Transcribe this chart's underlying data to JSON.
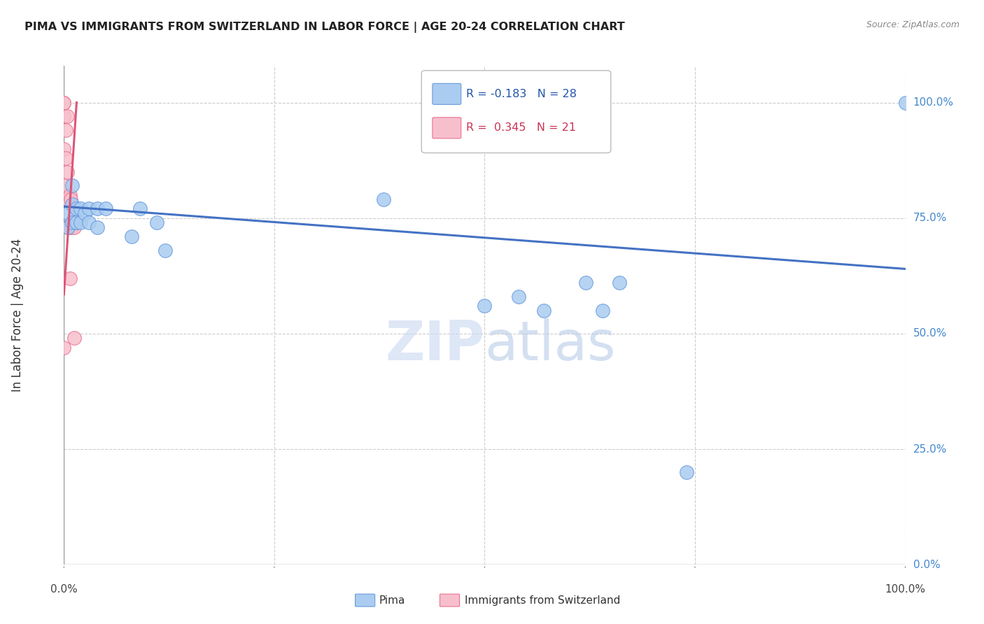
{
  "title": "PIMA VS IMMIGRANTS FROM SWITZERLAND IN LABOR FORCE | AGE 20-24 CORRELATION CHART",
  "source": "Source: ZipAtlas.com",
  "ylabel": "In Labor Force | Age 20-24",
  "xlim": [
    0.0,
    1.0
  ],
  "ylim": [
    0.0,
    1.08
  ],
  "background_color": "#ffffff",
  "pima_color": "#aaccf0",
  "swiss_color": "#f7bfcc",
  "pima_edge_color": "#6699dd",
  "swiss_edge_color": "#e87090",
  "pima_line_color": "#4472c4",
  "swiss_line_color": "#dd5577",
  "legend_pima_R": "-0.183",
  "legend_pima_N": "28",
  "legend_swiss_R": "0.345",
  "legend_swiss_N": "21",
  "right_ytick_labels": [
    "100.0%",
    "75.0%",
    "50.0%",
    "25.0%",
    "0.0%"
  ],
  "right_ytick_values": [
    1.0,
    0.75,
    0.5,
    0.25,
    0.0
  ],
  "pima_scatter_x": [
    0.005,
    0.005,
    0.01,
    0.01,
    0.01,
    0.015,
    0.015,
    0.02,
    0.02,
    0.025,
    0.03,
    0.03,
    0.04,
    0.04,
    0.05,
    0.08,
    0.09,
    0.11,
    0.12,
    0.38,
    0.5,
    0.54,
    0.57,
    0.62,
    0.64,
    0.66,
    0.74,
    1.0
  ],
  "pima_scatter_y": [
    0.76,
    0.73,
    0.82,
    0.78,
    0.74,
    0.77,
    0.74,
    0.77,
    0.74,
    0.76,
    0.77,
    0.74,
    0.77,
    0.73,
    0.77,
    0.71,
    0.77,
    0.74,
    0.68,
    0.79,
    0.56,
    0.58,
    0.55,
    0.61,
    0.55,
    0.61,
    0.2,
    1.0
  ],
  "swiss_scatter_x": [
    0.0,
    0.0,
    0.0,
    0.0,
    0.0,
    0.0,
    0.002,
    0.002,
    0.004,
    0.004,
    0.004,
    0.005,
    0.005,
    0.007,
    0.007,
    0.008,
    0.009,
    0.009,
    0.012,
    0.012,
    0.015
  ],
  "swiss_scatter_y": [
    1.0,
    1.0,
    0.97,
    0.9,
    0.82,
    0.47,
    0.94,
    0.88,
    0.97,
    0.85,
    0.79,
    0.79,
    0.73,
    0.8,
    0.62,
    0.79,
    0.74,
    0.73,
    0.73,
    0.49,
    0.74
  ],
  "pima_trend_x": [
    0.0,
    1.0
  ],
  "pima_trend_y": [
    0.775,
    0.64
  ],
  "swiss_trend_x": [
    0.0,
    0.015
  ],
  "swiss_trend_y": [
    0.585,
    1.0
  ]
}
